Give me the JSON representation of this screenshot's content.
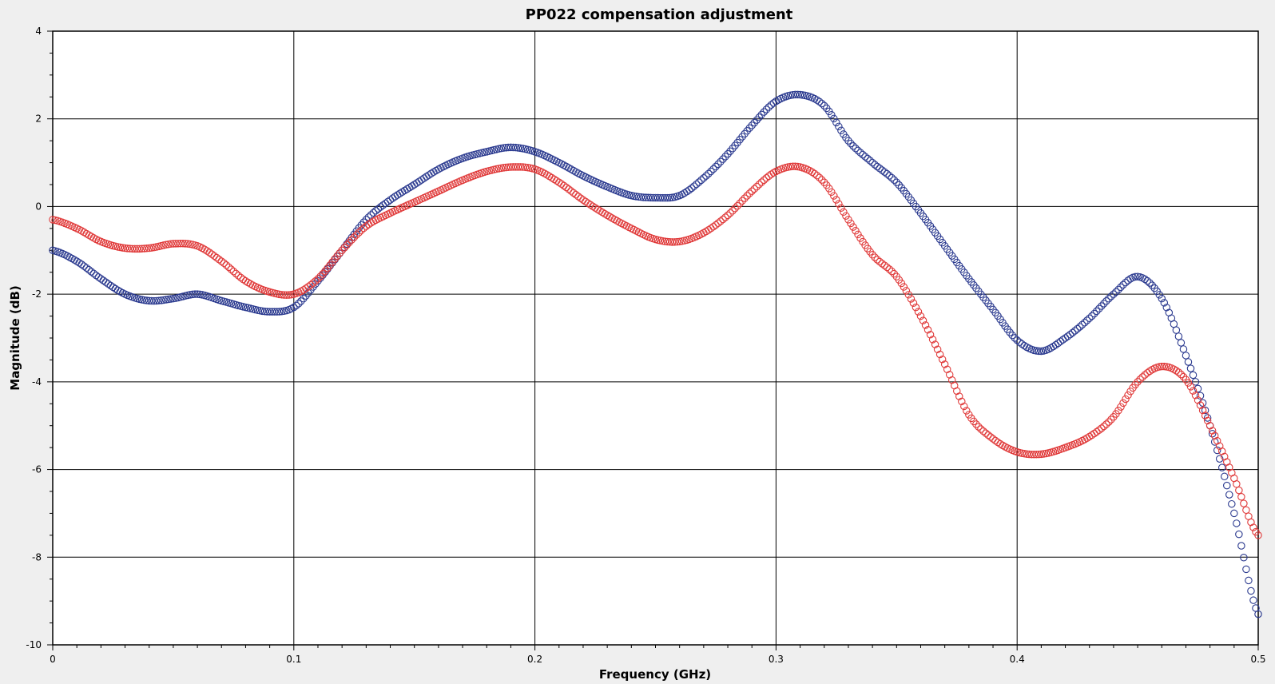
{
  "chart_data": {
    "type": "scatter",
    "title": "PP022 compensation adjustment",
    "xlabel": "Frequency (GHz)",
    "ylabel": "Magnitude (dB)",
    "xlim": [
      0,
      0.5
    ],
    "ylim": [
      -10,
      4
    ],
    "xticks": [
      "0",
      "0.1",
      "0.2",
      "0.3",
      "0.4",
      "0.5"
    ],
    "yticks": [
      "-10",
      "-8",
      "-6",
      "-4",
      "-2",
      "0",
      "2",
      "4"
    ],
    "grid": true,
    "legend": "none",
    "marker": "open-circle",
    "series": [
      {
        "color": "#2b3a8f",
        "x": [
          0,
          0.01,
          0.02,
          0.03,
          0.04,
          0.05,
          0.06,
          0.07,
          0.08,
          0.09,
          0.1,
          0.11,
          0.12,
          0.13,
          0.14,
          0.15,
          0.16,
          0.17,
          0.18,
          0.19,
          0.2,
          0.21,
          0.22,
          0.23,
          0.24,
          0.25,
          0.26,
          0.27,
          0.28,
          0.29,
          0.3,
          0.31,
          0.32,
          0.33,
          0.34,
          0.35,
          0.36,
          0.37,
          0.38,
          0.39,
          0.4,
          0.41,
          0.42,
          0.43,
          0.44,
          0.45,
          0.46,
          0.47,
          0.48,
          0.49,
          0.5
        ],
        "y": [
          -1.0,
          -1.25,
          -1.65,
          -2.0,
          -2.15,
          -2.1,
          -2.0,
          -2.15,
          -2.3,
          -2.4,
          -2.3,
          -1.7,
          -1.0,
          -0.3,
          0.15,
          0.5,
          0.85,
          1.1,
          1.25,
          1.35,
          1.25,
          1.0,
          0.7,
          0.45,
          0.25,
          0.2,
          0.25,
          0.65,
          1.2,
          1.85,
          2.4,
          2.55,
          2.3,
          1.5,
          1.0,
          0.55,
          -0.15,
          -0.9,
          -1.65,
          -2.35,
          -3.05,
          -3.3,
          -3.0,
          -2.55,
          -2.0,
          -1.6,
          -2.1,
          -3.4,
          -5.0,
          -7.0,
          -9.3
        ]
      },
      {
        "color": "#e03a3a",
        "x": [
          0,
          0.01,
          0.02,
          0.03,
          0.04,
          0.05,
          0.06,
          0.07,
          0.08,
          0.09,
          0.1,
          0.11,
          0.12,
          0.13,
          0.14,
          0.15,
          0.16,
          0.17,
          0.18,
          0.19,
          0.2,
          0.21,
          0.22,
          0.23,
          0.24,
          0.25,
          0.26,
          0.27,
          0.28,
          0.29,
          0.3,
          0.31,
          0.32,
          0.33,
          0.34,
          0.35,
          0.36,
          0.37,
          0.38,
          0.39,
          0.4,
          0.41,
          0.42,
          0.43,
          0.44,
          0.45,
          0.46,
          0.47,
          0.48,
          0.49,
          0.5
        ],
        "y": [
          -0.3,
          -0.5,
          -0.8,
          -0.95,
          -0.95,
          -0.85,
          -0.9,
          -1.25,
          -1.7,
          -1.95,
          -2.0,
          -1.65,
          -1.0,
          -0.45,
          -0.15,
          0.1,
          0.35,
          0.6,
          0.8,
          0.9,
          0.85,
          0.55,
          0.15,
          -0.2,
          -0.5,
          -0.75,
          -0.8,
          -0.6,
          -0.2,
          0.35,
          0.8,
          0.9,
          0.55,
          -0.3,
          -1.1,
          -1.6,
          -2.5,
          -3.6,
          -4.75,
          -5.3,
          -5.6,
          -5.65,
          -5.5,
          -5.25,
          -4.8,
          -4.0,
          -3.65,
          -3.95,
          -5.0,
          -6.2,
          -7.5
        ]
      }
    ]
  }
}
